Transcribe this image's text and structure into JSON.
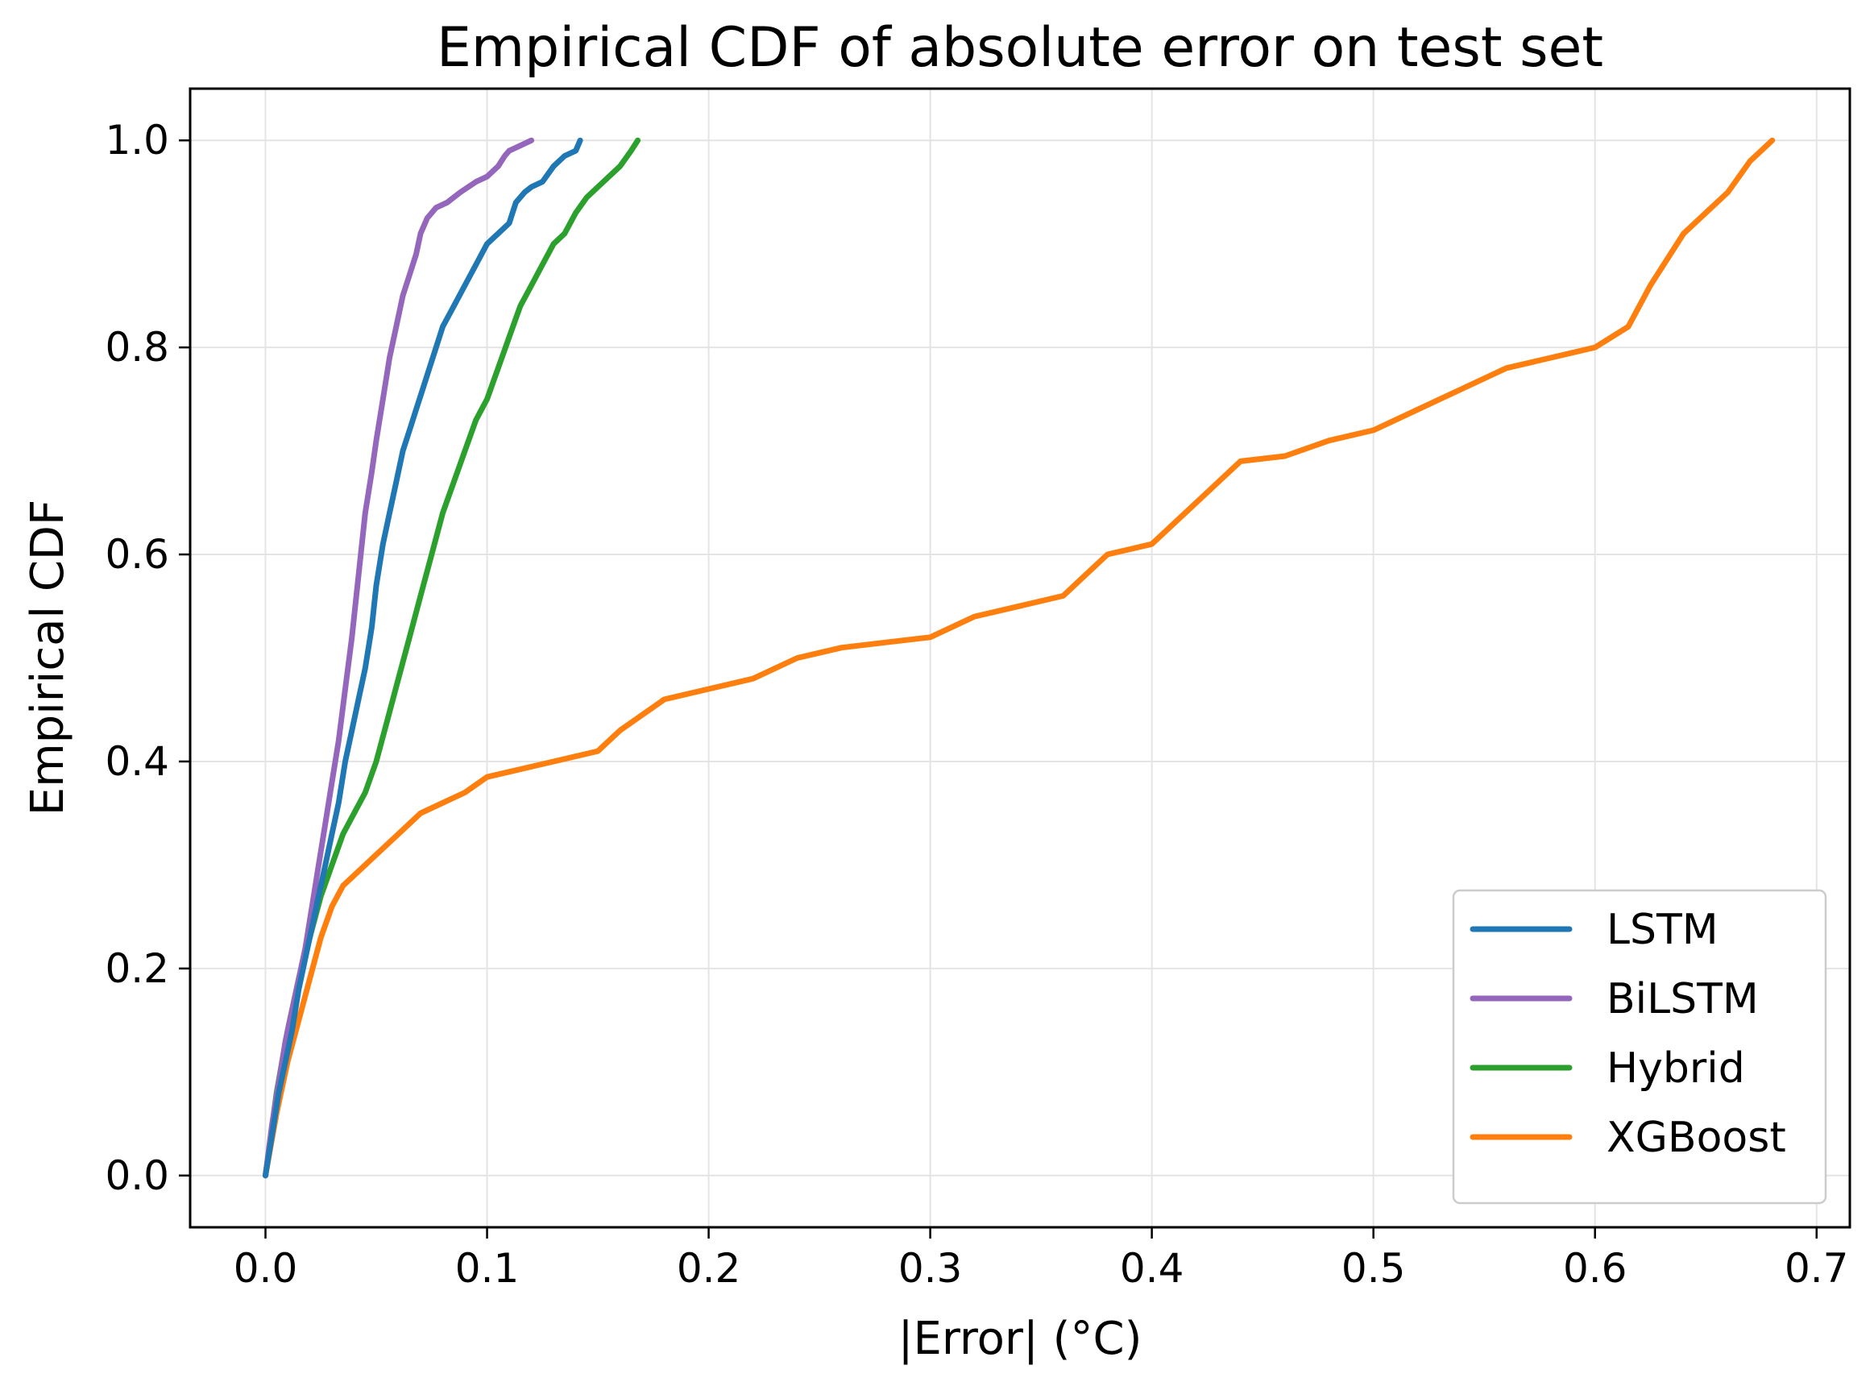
{
  "chart_data": {
    "type": "line",
    "title": "Empirical CDF of absolute error on test set",
    "xlabel": "|Error| (°C)",
    "ylabel": "Empirical CDF",
    "xlim": [
      -0.034,
      0.715
    ],
    "ylim": [
      -0.05,
      1.05
    ],
    "xticks": [
      "0.0",
      "0.1",
      "0.2",
      "0.3",
      "0.4",
      "0.5",
      "0.6",
      "0.7"
    ],
    "yticks": [
      "0.0",
      "0.2",
      "0.4",
      "0.6",
      "0.8",
      "1.0"
    ],
    "grid": true,
    "legend_position": "bottom-right",
    "series": [
      {
        "name": "LSTM",
        "color": "#1f77b4",
        "x": [
          0.0,
          0.003,
          0.006,
          0.009,
          0.012,
          0.015,
          0.018,
          0.021,
          0.024,
          0.027,
          0.03,
          0.033,
          0.036,
          0.039,
          0.042,
          0.045,
          0.048,
          0.05,
          0.053,
          0.056,
          0.059,
          0.062,
          0.065,
          0.068,
          0.071,
          0.074,
          0.077,
          0.08,
          0.085,
          0.09,
          0.095,
          0.1,
          0.105,
          0.11,
          0.113,
          0.117,
          0.12,
          0.125,
          0.13,
          0.135,
          0.14,
          0.142
        ],
        "y": [
          0.0,
          0.04,
          0.08,
          0.11,
          0.14,
          0.18,
          0.21,
          0.24,
          0.27,
          0.3,
          0.33,
          0.36,
          0.4,
          0.43,
          0.46,
          0.49,
          0.53,
          0.57,
          0.61,
          0.64,
          0.67,
          0.7,
          0.72,
          0.74,
          0.76,
          0.78,
          0.8,
          0.82,
          0.84,
          0.86,
          0.88,
          0.9,
          0.91,
          0.92,
          0.94,
          0.95,
          0.955,
          0.96,
          0.975,
          0.985,
          0.99,
          1.0
        ]
      },
      {
        "name": "BiLSTM",
        "color": "#9467bd",
        "x": [
          0.0,
          0.003,
          0.006,
          0.009,
          0.012,
          0.015,
          0.018,
          0.021,
          0.024,
          0.027,
          0.03,
          0.033,
          0.036,
          0.039,
          0.041,
          0.043,
          0.045,
          0.048,
          0.05,
          0.053,
          0.056,
          0.059,
          0.062,
          0.065,
          0.068,
          0.07,
          0.073,
          0.077,
          0.082,
          0.088,
          0.095,
          0.1,
          0.105,
          0.108,
          0.11,
          0.115,
          0.12
        ],
        "y": [
          0.0,
          0.05,
          0.09,
          0.13,
          0.16,
          0.19,
          0.22,
          0.26,
          0.3,
          0.34,
          0.38,
          0.42,
          0.47,
          0.52,
          0.56,
          0.6,
          0.64,
          0.68,
          0.71,
          0.75,
          0.79,
          0.82,
          0.85,
          0.87,
          0.89,
          0.91,
          0.925,
          0.935,
          0.94,
          0.95,
          0.96,
          0.965,
          0.975,
          0.985,
          0.99,
          0.995,
          1.0
        ]
      },
      {
        "name": "Hybrid",
        "color": "#2ca02c",
        "x": [
          0.0,
          0.005,
          0.01,
          0.015,
          0.02,
          0.025,
          0.03,
          0.035,
          0.04,
          0.045,
          0.05,
          0.055,
          0.06,
          0.065,
          0.07,
          0.075,
          0.08,
          0.085,
          0.09,
          0.095,
          0.1,
          0.105,
          0.11,
          0.115,
          0.12,
          0.125,
          0.13,
          0.135,
          0.14,
          0.145,
          0.15,
          0.155,
          0.16,
          0.165,
          0.168
        ],
        "y": [
          0.0,
          0.08,
          0.14,
          0.19,
          0.23,
          0.27,
          0.3,
          0.33,
          0.35,
          0.37,
          0.4,
          0.44,
          0.48,
          0.52,
          0.56,
          0.6,
          0.64,
          0.67,
          0.7,
          0.73,
          0.75,
          0.78,
          0.81,
          0.84,
          0.86,
          0.88,
          0.9,
          0.91,
          0.93,
          0.945,
          0.955,
          0.965,
          0.975,
          0.99,
          1.0
        ]
      },
      {
        "name": "XGBoost",
        "color": "#ff7f0e",
        "x": [
          0.0,
          0.005,
          0.01,
          0.015,
          0.02,
          0.025,
          0.03,
          0.035,
          0.04,
          0.05,
          0.06,
          0.07,
          0.08,
          0.09,
          0.1,
          0.12,
          0.13,
          0.15,
          0.16,
          0.18,
          0.2,
          0.22,
          0.24,
          0.26,
          0.28,
          0.3,
          0.32,
          0.34,
          0.36,
          0.37,
          0.38,
          0.4,
          0.42,
          0.44,
          0.46,
          0.48,
          0.5,
          0.52,
          0.54,
          0.56,
          0.58,
          0.6,
          0.615,
          0.625,
          0.64,
          0.66,
          0.67,
          0.68
        ],
        "y": [
          0.0,
          0.06,
          0.11,
          0.15,
          0.19,
          0.23,
          0.26,
          0.28,
          0.29,
          0.31,
          0.33,
          0.35,
          0.36,
          0.37,
          0.385,
          0.395,
          0.4,
          0.41,
          0.43,
          0.46,
          0.47,
          0.48,
          0.5,
          0.51,
          0.515,
          0.52,
          0.54,
          0.55,
          0.56,
          0.58,
          0.6,
          0.61,
          0.65,
          0.69,
          0.695,
          0.71,
          0.72,
          0.74,
          0.76,
          0.78,
          0.79,
          0.8,
          0.82,
          0.86,
          0.91,
          0.95,
          0.98,
          1.0
        ]
      }
    ]
  }
}
